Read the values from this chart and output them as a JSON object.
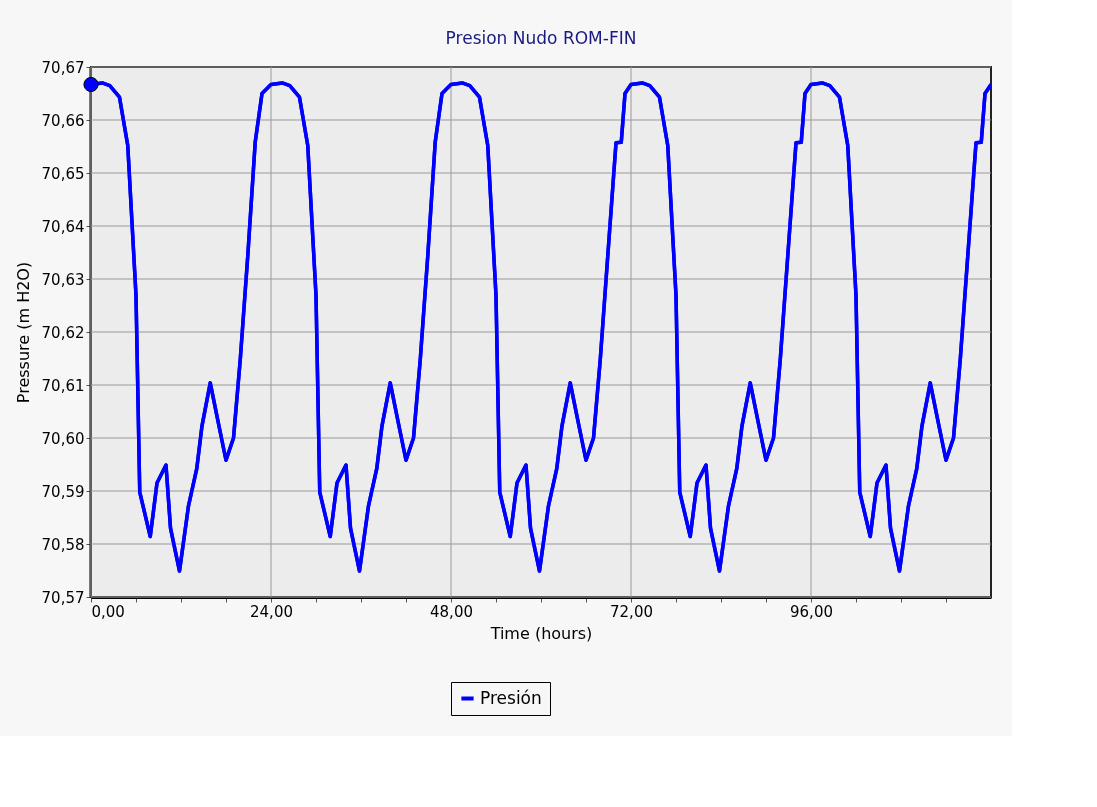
{
  "chart_data": {
    "type": "line",
    "title": "Presion Nudo ROM-FIN",
    "xlabel": "Time (hours)",
    "ylabel": "Pressure (m H2O)",
    "x": [
      0,
      1.5,
      2.5,
      3.8,
      4.9,
      6,
      6.5,
      7.9,
      8.8,
      10,
      10.6,
      11.8,
      13,
      14.1,
      14.8,
      15.9,
      16.9,
      18,
      19,
      19.9,
      20.9,
      21.9,
      22.8,
      24,
      25.5,
      26.5,
      27.8,
      28.9,
      30,
      30.5,
      31.9,
      32.8,
      34,
      34.6,
      35.8,
      37,
      38.1,
      38.8,
      39.9,
      40.9,
      42,
      43,
      43.9,
      44.9,
      45.9,
      46.8,
      48,
      49.5,
      50.5,
      51.8,
      52.9,
      54,
      54.5,
      55.9,
      56.8,
      58,
      58.6,
      59.8,
      61,
      62.1,
      62.8,
      63.9,
      64.9,
      66,
      67,
      67.9,
      68.9,
      70,
      70.7,
      71.2,
      72,
      73.5,
      74.5,
      75.8,
      76.9,
      78,
      78.5,
      79.9,
      80.8,
      82,
      82.6,
      83.8,
      85,
      86.1,
      86.8,
      87.9,
      88.9,
      90,
      91,
      91.9,
      92.9,
      94,
      94.7,
      95.2,
      96,
      97.5,
      98.5,
      99.8,
      100.9,
      102,
      102.5,
      103.9,
      104.8,
      106,
      106.6,
      107.8,
      109,
      110.1,
      110.8,
      111.9,
      112.9,
      114,
      115,
      115.9,
      116.9,
      118,
      118.7,
      119.2,
      120
    ],
    "series": [
      {
        "name": "Presión",
        "color": "#0000ff",
        "values": [
          70.6667,
          70.667,
          70.6665,
          70.6643,
          70.6552,
          70.6269,
          70.5898,
          70.5814,
          70.5915,
          70.5949,
          70.583,
          70.5749,
          70.5872,
          70.5942,
          70.6023,
          70.6104,
          70.6034,
          70.5958,
          70.6,
          70.6148,
          70.6343,
          70.6559,
          70.665,
          70.6667,
          70.667,
          70.6665,
          70.6643,
          70.6552,
          70.6269,
          70.5898,
          70.5814,
          70.5915,
          70.5949,
          70.583,
          70.5749,
          70.5872,
          70.5942,
          70.6023,
          70.6104,
          70.6034,
          70.5958,
          70.6,
          70.6148,
          70.6343,
          70.6559,
          70.665,
          70.6667,
          70.667,
          70.6665,
          70.6643,
          70.6552,
          70.6269,
          70.5898,
          70.5814,
          70.5915,
          70.5949,
          70.583,
          70.5749,
          70.5872,
          70.5942,
          70.6023,
          70.6104,
          70.6034,
          70.5958,
          70.6,
          70.6148,
          70.6343,
          70.6557,
          70.6558,
          70.665,
          70.6667,
          70.667,
          70.6665,
          70.6643,
          70.6552,
          70.6269,
          70.5898,
          70.5814,
          70.5915,
          70.5949,
          70.583,
          70.5749,
          70.5872,
          70.5942,
          70.6023,
          70.6104,
          70.6034,
          70.5958,
          70.6,
          70.6148,
          70.6343,
          70.6557,
          70.6558,
          70.665,
          70.6667,
          70.667,
          70.6665,
          70.6643,
          70.6552,
          70.6269,
          70.5898,
          70.5814,
          70.5915,
          70.5949,
          70.583,
          70.5749,
          70.5872,
          70.5942,
          70.6023,
          70.6104,
          70.6034,
          70.5958,
          70.6,
          70.6148,
          70.6343,
          70.6557,
          70.6558,
          70.665,
          70.6667
        ]
      },
      {
        "type": "scatter",
        "color": "#0000ff",
        "marker": "circle",
        "x": [
          0
        ],
        "values": [
          70.6667
        ]
      }
    ],
    "xlim": [
      0,
      120
    ],
    "xticks": [
      {
        "value": 0,
        "label": "0,00"
      },
      {
        "value": 6,
        "label": null
      },
      {
        "value": 12,
        "label": null
      },
      {
        "value": 18,
        "label": null
      },
      {
        "value": 24,
        "label": "24,00"
      },
      {
        "value": 30,
        "label": null
      },
      {
        "value": 36,
        "label": null
      },
      {
        "value": 42,
        "label": null
      },
      {
        "value": 48,
        "label": "48,00"
      },
      {
        "value": 54,
        "label": null
      },
      {
        "value": 60,
        "label": null
      },
      {
        "value": 66,
        "label": null
      },
      {
        "value": 72,
        "label": "72,00"
      },
      {
        "value": 78,
        "label": null
      },
      {
        "value": 84,
        "label": null
      },
      {
        "value": 90,
        "label": null
      },
      {
        "value": 96,
        "label": "96,00"
      },
      {
        "value": 102,
        "label": null
      },
      {
        "value": 108,
        "label": null
      },
      {
        "value": 114,
        "label": null
      }
    ],
    "ylim": [
      70.57,
      70.67
    ],
    "yticks": [
      {
        "value": 70.57,
        "label": "70,57"
      },
      {
        "value": 70.58,
        "label": "70,58"
      },
      {
        "value": 70.59,
        "label": "70,59"
      },
      {
        "value": 70.6,
        "label": "70,60"
      },
      {
        "value": 70.61,
        "label": "70,61"
      },
      {
        "value": 70.62,
        "label": "70,62"
      },
      {
        "value": 70.63,
        "label": "70,63"
      },
      {
        "value": 70.64,
        "label": "70,64"
      },
      {
        "value": 70.65,
        "label": "70,65"
      },
      {
        "value": 70.66,
        "label": "70,66"
      },
      {
        "value": 70.67,
        "label": "70,67"
      }
    ],
    "grid": true,
    "legend": "bottom",
    "marker": "none",
    "line_style": "solid"
  }
}
